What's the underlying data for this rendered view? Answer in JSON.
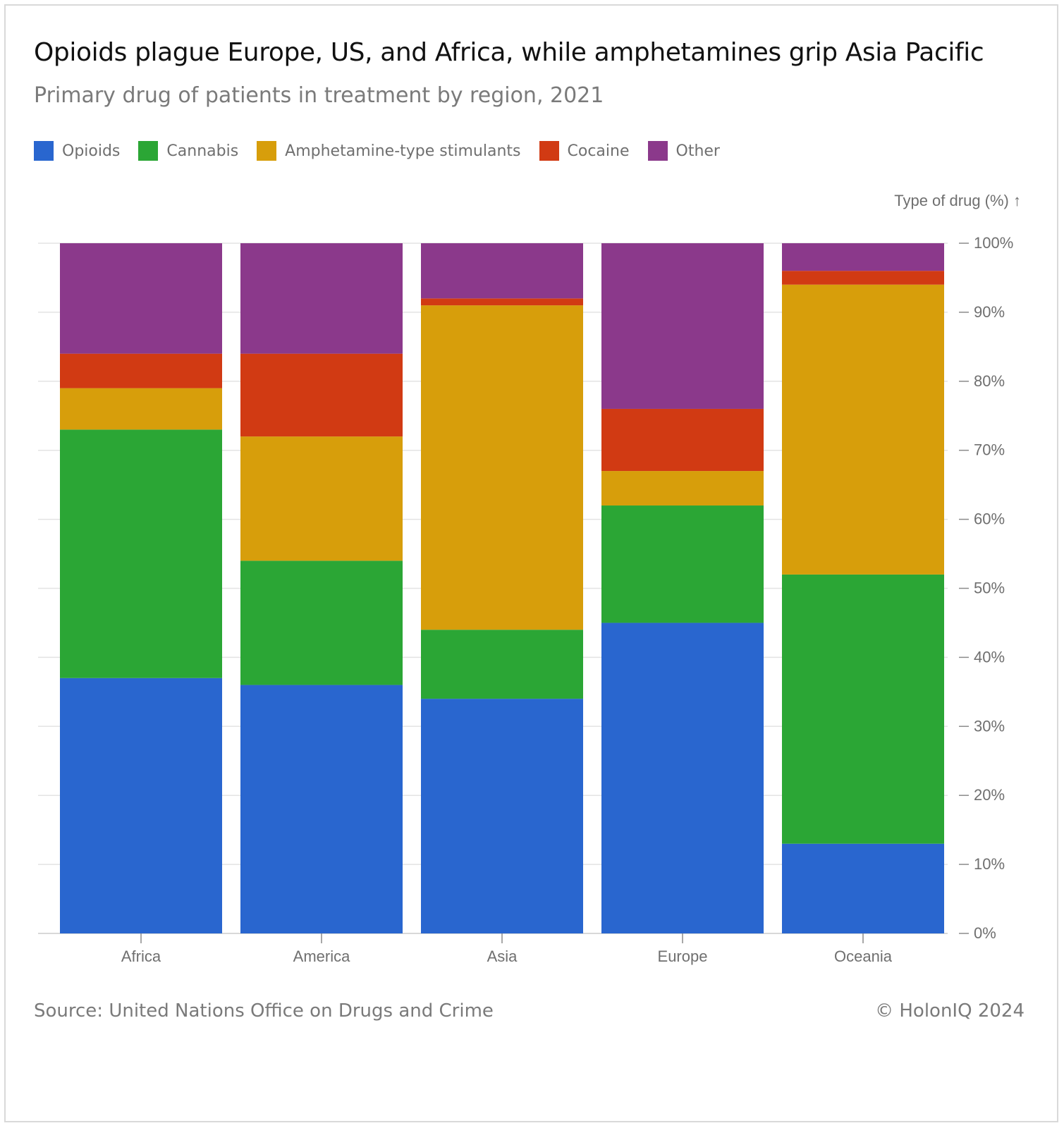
{
  "chart_data": {
    "type": "bar",
    "stacked": true,
    "title": "Opioids plague Europe, US, and Africa, while amphetamines grip Asia Pacific",
    "subtitle": "Primary drug of patients in treatment by region, 2021",
    "ylabel": "Type of drug (%) ↑",
    "xlabel": "",
    "ylim": [
      0,
      100
    ],
    "y_ticks": [
      0,
      10,
      20,
      30,
      40,
      50,
      60,
      70,
      80,
      90,
      100
    ],
    "y_tick_labels": [
      "0%",
      "10%",
      "20%",
      "30%",
      "40%",
      "50%",
      "60%",
      "70%",
      "80%",
      "90%",
      "100%"
    ],
    "grid": true,
    "legend_position": "top-left",
    "categories": [
      "Africa",
      "America",
      "Asia",
      "Europe",
      "Oceania"
    ],
    "series": [
      {
        "name": "Opioids",
        "color": "#2966cf",
        "values": [
          37,
          36,
          34,
          45,
          13
        ]
      },
      {
        "name": "Cannabis",
        "color": "#2ba635",
        "values": [
          36,
          18,
          10,
          17,
          39
        ]
      },
      {
        "name": "Amphetamine-type stimulants",
        "color": "#d79e0b",
        "values": [
          6,
          18,
          47,
          5,
          42
        ]
      },
      {
        "name": "Cocaine",
        "color": "#d13a13",
        "values": [
          5,
          12,
          1,
          9,
          2
        ]
      },
      {
        "name": "Other",
        "color": "#8b398b",
        "values": [
          16,
          16,
          8,
          24,
          4
        ]
      }
    ]
  },
  "footer": {
    "source": "Source: United Nations Office on Drugs and Crime",
    "copyright": "© HolonIQ 2024"
  }
}
